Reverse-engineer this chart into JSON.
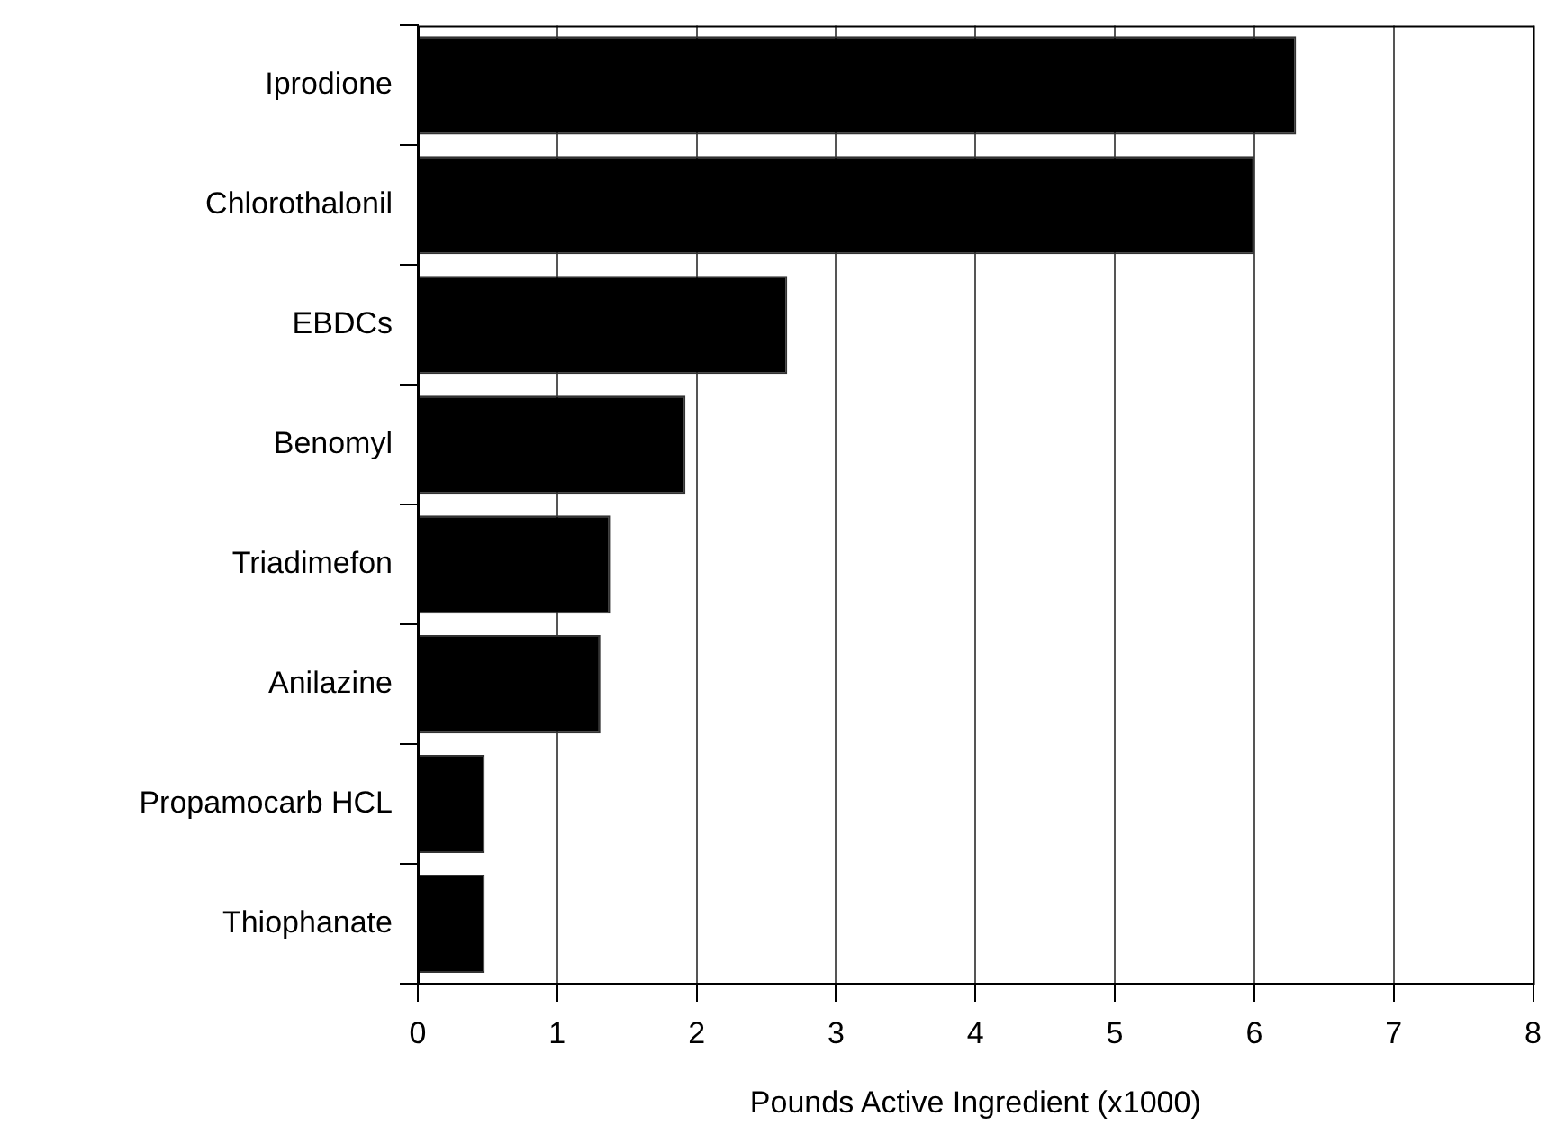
{
  "chart_data": {
    "type": "bar",
    "orientation": "horizontal",
    "xlabel": "Pounds Active Ingredient (x1000)",
    "categories": [
      "Iprodione",
      "Chlorothalonil",
      "EBDCs",
      "Benomyl",
      "Triadimefon",
      "Anilazine",
      "Propamocarb HCL",
      "Thiophanate"
    ],
    "values": [
      6.3,
      6.0,
      2.65,
      1.92,
      1.38,
      1.31,
      0.48,
      0.48
    ],
    "color": "#000000",
    "xlim": [
      0,
      8
    ],
    "xticks": [
      0,
      1,
      2,
      3,
      4,
      5,
      6,
      7,
      8
    ],
    "grid": "x",
    "legend": false
  }
}
